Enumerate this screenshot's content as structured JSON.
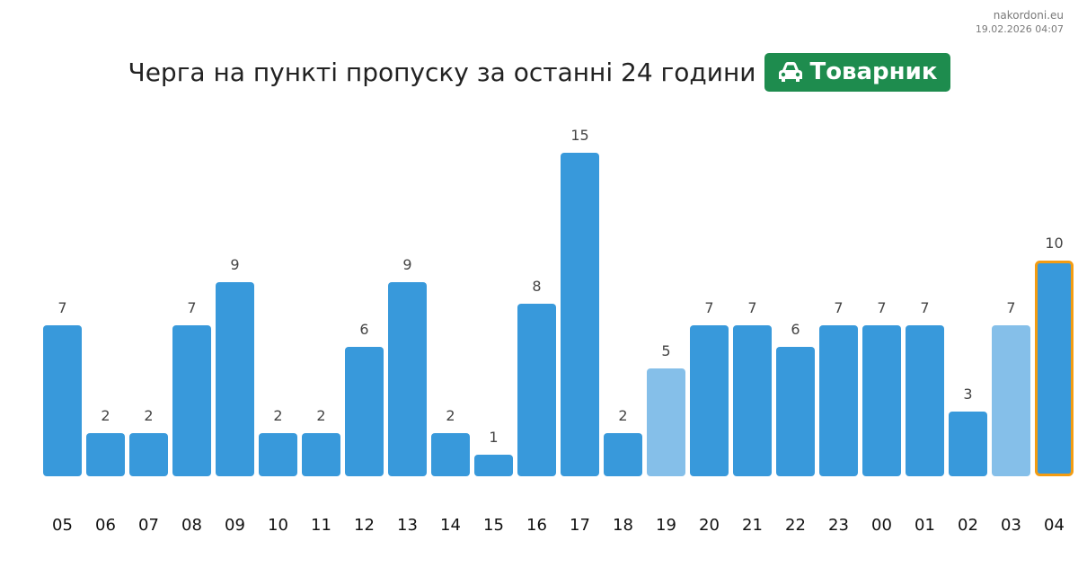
{
  "site": {
    "domain": "nakordoni.eu",
    "timestamp": "19.02.2026 04:07"
  },
  "header": {
    "title": "Черга на пункті пропуску за останні 24 години",
    "badge_label": "Товарник",
    "badge_icon": "car-icon"
  },
  "colors": {
    "bar": "#3899db",
    "bar_light": "#85bfe9",
    "highlight_border": "#f39c12",
    "badge": "#1e8c4e"
  },
  "chart_data": {
    "type": "bar",
    "title": "Черга на пункті пропуску за останні 24 години",
    "xlabel": "",
    "ylabel": "",
    "categories": [
      "05",
      "06",
      "07",
      "08",
      "09",
      "10",
      "11",
      "12",
      "13",
      "14",
      "15",
      "16",
      "17",
      "18",
      "19",
      "20",
      "21",
      "22",
      "23",
      "00",
      "01",
      "02",
      "03",
      "04"
    ],
    "values": [
      7,
      2,
      2,
      7,
      9,
      2,
      2,
      6,
      9,
      2,
      1,
      8,
      15,
      2,
      5,
      7,
      7,
      6,
      7,
      7,
      7,
      3,
      7,
      10
    ],
    "light_bars": [
      "19",
      "03"
    ],
    "highlighted": "04",
    "ylim": [
      0,
      15
    ],
    "grid": false,
    "legend": "none"
  }
}
